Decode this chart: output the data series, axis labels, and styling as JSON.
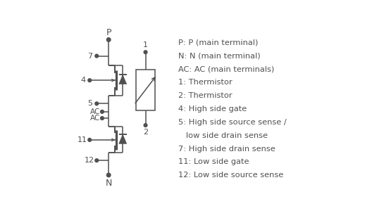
{
  "bg_color": "#ffffff",
  "line_color": "#505050",
  "text_color": "#505050",
  "legend_lines": [
    "P: P (main terminal)",
    "N: N (main terminal)",
    "AC: AC (main terminals)",
    "1: Thermistor",
    "2: Thermistor",
    "4: High side gate",
    "5: High side source sense /",
    "   low side drain sense",
    "7: High side drain sense",
    "11: Low side gate",
    "12: Low side source sense"
  ],
  "fig_width": 5.45,
  "fig_height": 3.1,
  "dpi": 100
}
